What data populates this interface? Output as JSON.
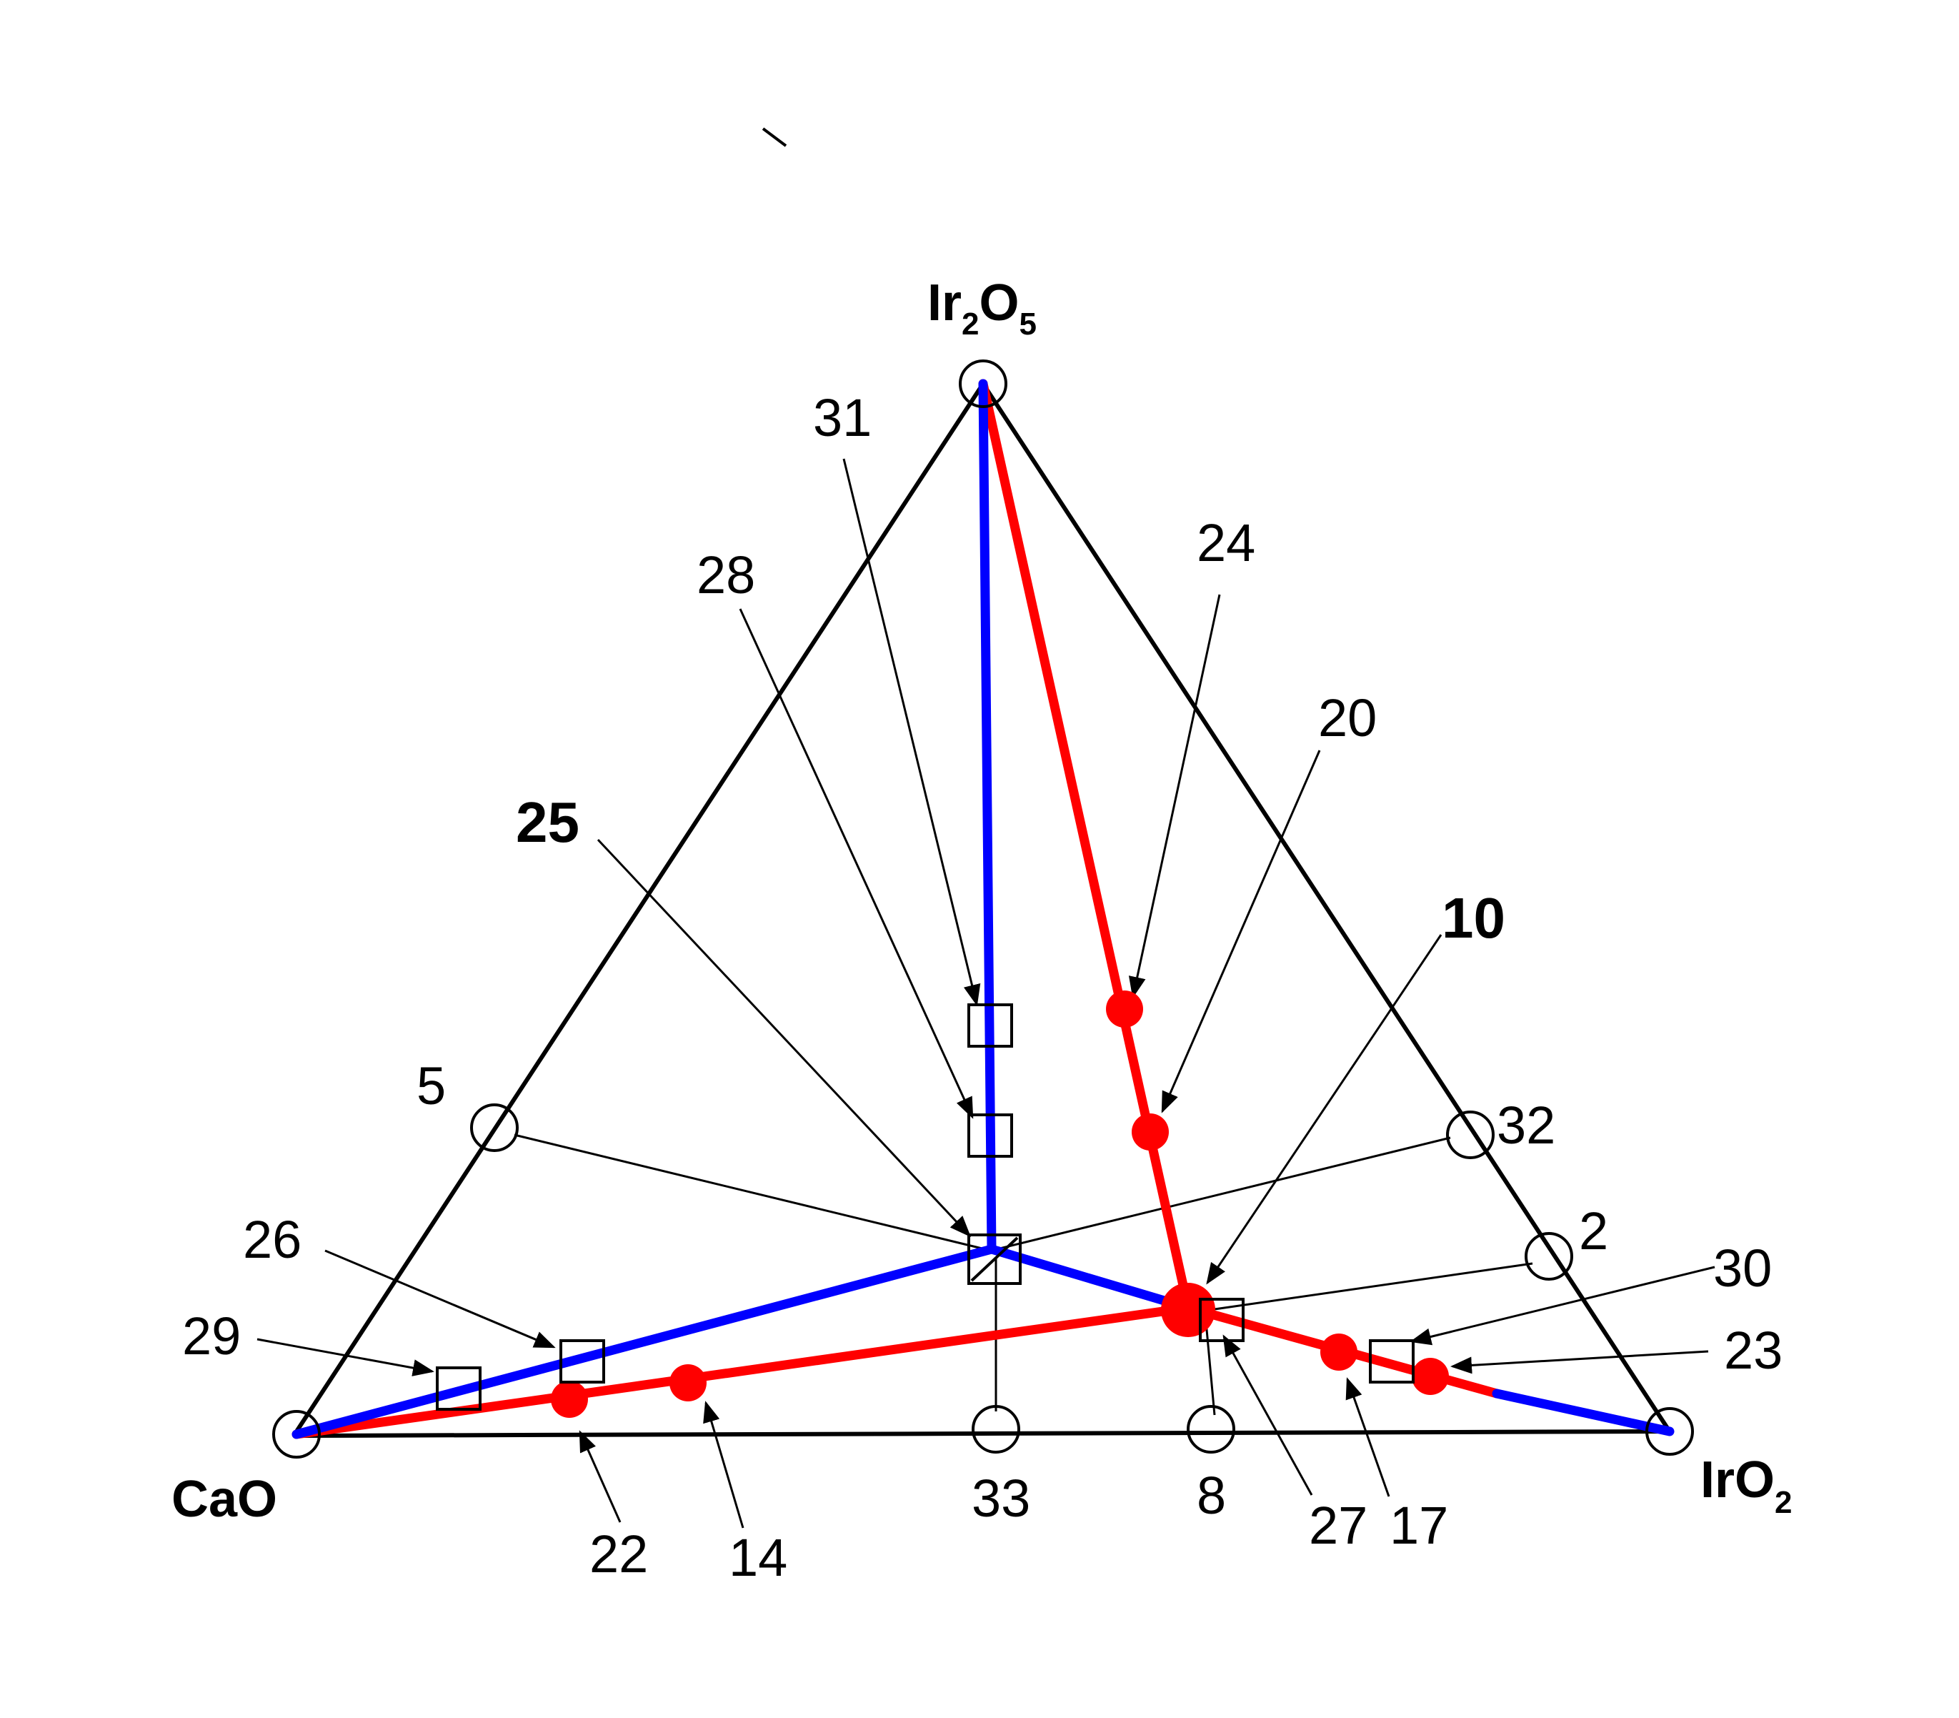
{
  "vertices": {
    "top": {
      "base": "Ir",
      "sub1": "2",
      "mid": "O",
      "sub2": "5"
    },
    "left": {
      "text": "CaO"
    },
    "right": {
      "base": "IrO",
      "sub": "2"
    }
  },
  "labels": {
    "l31": "31",
    "l28": "28",
    "l24": "24",
    "l20": "20",
    "l25": "25",
    "l10": "10",
    "l5": "5",
    "l32": "32",
    "l2": "2",
    "l30": "30",
    "l26": "26",
    "l23": "23",
    "l29": "29",
    "l33": "33",
    "l8": "8",
    "l27": "27",
    "l17": "17",
    "l22": "22",
    "l14": "14"
  },
  "colors": {
    "outline": "#000000",
    "blue_tie_line": "#0000ff",
    "red_tie_line": "#ff0000",
    "filled_marker": "#ff0000"
  },
  "marker_legend": {
    "open_circle": "binary composition marker",
    "open_square": "ternary composition marker",
    "filled_circle": "composition on red tie line"
  }
}
